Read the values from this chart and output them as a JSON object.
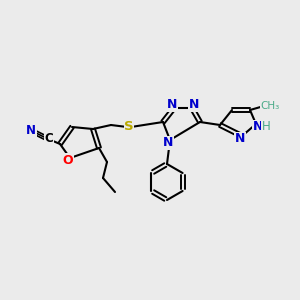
{
  "bg_color": "#ebebeb",
  "colors": {
    "C": "#000000",
    "N": "#0000cc",
    "O": "#ff0000",
    "S": "#bbaa00",
    "H": "#4aaa88",
    "methyl": "#4aaa88",
    "bond": "#000000"
  },
  "figsize": [
    3.0,
    3.0
  ],
  "dpi": 100
}
